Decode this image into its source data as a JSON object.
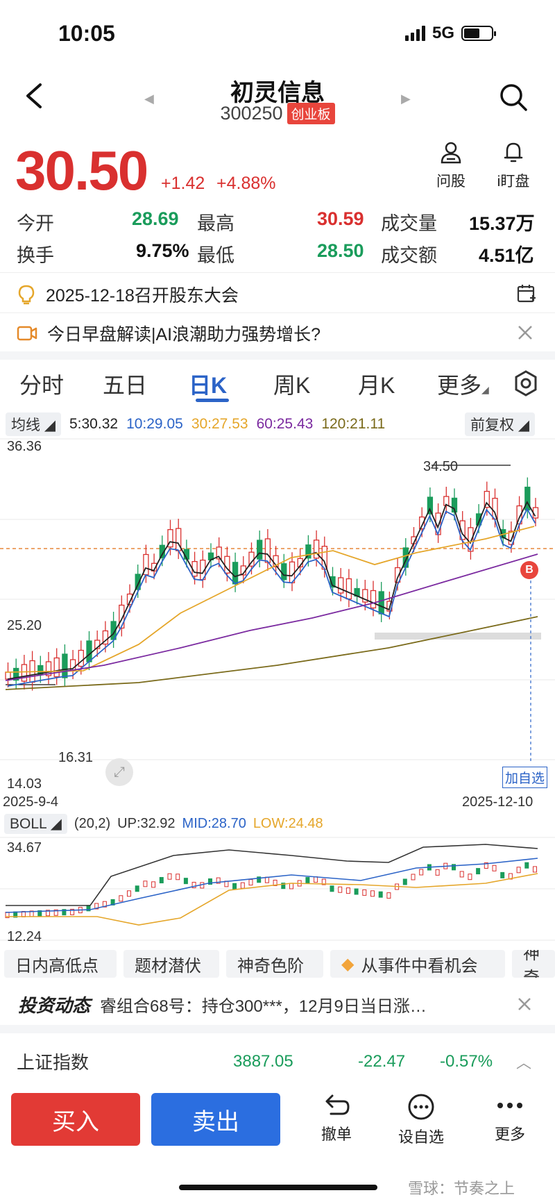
{
  "status_bar": {
    "time": "10:05",
    "network": "5G"
  },
  "header": {
    "title": "初灵信息",
    "code": "300250",
    "board": "创业板"
  },
  "quote": {
    "price": "30.50",
    "change": "+1.42",
    "change_pct": "+4.88%",
    "actions": [
      {
        "label": "问股",
        "icon": "user-question-icon"
      },
      {
        "label": "i盯盘",
        "icon": "bell-icon"
      }
    ],
    "stats": [
      {
        "label": "今开",
        "value": "28.69",
        "color": "green"
      },
      {
        "label": "最高",
        "value": "30.59",
        "color": "red"
      },
      {
        "label": "成交量",
        "value": "15.37万",
        "color": "black"
      },
      {
        "label": "换手",
        "value": "9.75%",
        "color": "black"
      },
      {
        "label": "最低",
        "value": "28.50",
        "color": "green"
      },
      {
        "label": "成交额",
        "value": "4.51亿",
        "color": "black"
      }
    ]
  },
  "notices": {
    "meeting": "2025-12-18召开股东大会",
    "video": "今日早盘解读|AI浪潮助力强势增长?"
  },
  "tabs": [
    {
      "label": "分时"
    },
    {
      "label": "五日"
    },
    {
      "label": "日K"
    },
    {
      "label": "周K"
    },
    {
      "label": "月K"
    },
    {
      "label": "更多"
    }
  ],
  "ma": {
    "label": "均线",
    "items": [
      {
        "text": "5:30.32",
        "color": "#222222"
      },
      {
        "text": "10:29.05",
        "color": "#2b63c7"
      },
      {
        "text": "30:27.53",
        "color": "#e5a62a"
      },
      {
        "text": "60:25.43",
        "color": "#7b2aa0"
      },
      {
        "text": "120:21.11",
        "color": "#7a6a1a"
      }
    ],
    "adjust": "前复权"
  },
  "kline": {
    "y_max": "36.36",
    "y_mid": "25.20",
    "y_min": "14.03",
    "date_start": "2025-9-4",
    "date_end": "2025-12-10",
    "high_marker": "34.50",
    "low_marker": "16.31",
    "buy_marker": "B",
    "add_watch": "加自选"
  },
  "boll": {
    "label": "BOLL",
    "params": "(20,2)",
    "up": "UP:32.92",
    "mid": "MID:28.70",
    "low": "LOW:24.48",
    "y_max": "34.67",
    "y_min": "12.24"
  },
  "features": [
    {
      "label": "日内高低点"
    },
    {
      "label": "题材潜伏"
    },
    {
      "label": "神奇色阶"
    },
    {
      "label": "从事件中看机会"
    },
    {
      "label": "神奇"
    }
  ],
  "news": {
    "brand": "投资动态",
    "text": "睿组合68号：持仓300***，12月9日当日涨…"
  },
  "index": {
    "name": "上证指数",
    "value": "3887.05",
    "change": "-22.47",
    "change_pct": "-0.57%"
  },
  "bottom": {
    "buy": "买入",
    "sell": "卖出",
    "tools": [
      {
        "label": "撤单",
        "icon": "undo-icon"
      },
      {
        "label": "设自选",
        "icon": "chat-dots-icon"
      },
      {
        "label": "更多",
        "icon": "more-dots-icon"
      }
    ]
  },
  "watermark": "雪球：节奏之上",
  "colors": {
    "up": "#d9302f",
    "down": "#1a9c5b",
    "ma5": "#222222",
    "ma10": "#2b63c7",
    "ma30": "#e5a62a",
    "ma60": "#7b2aa0",
    "ma120": "#7a6a1a",
    "price_line": "#e7873a"
  }
}
